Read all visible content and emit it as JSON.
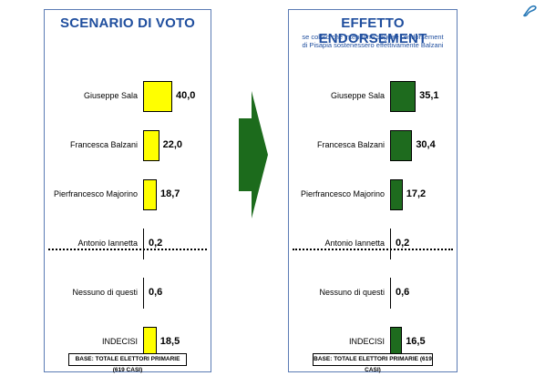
{
  "colors": {
    "left_bar": "#ffff00",
    "right_bar": "#1e6b1e",
    "frame": "#5b7bb4",
    "title": "#1f4e9e",
    "arrow": "#1c6b1c"
  },
  "chart_data": [
    {
      "type": "bar",
      "orientation": "horizontal",
      "title": "SCENARIO DI VOTO",
      "categories": [
        "Giuseppe Sala",
        "Francesca Balzani",
        "Pierfrancesco Majorino",
        "Antonio Iannetta",
        "Nessuno di questi",
        "INDECISI"
      ],
      "values": [
        40.0,
        22.0,
        18.7,
        0.2,
        0.6,
        18.5
      ],
      "value_labels": [
        "40,0",
        "22,0",
        "18,7",
        "0,2",
        "0,6",
        "18,5"
      ],
      "base": "BASE: TOTALE ELETTORI PRIMARIE (619 CASI)"
    },
    {
      "type": "bar",
      "orientation": "horizontal",
      "title": "EFFETTO ENDORSEMENT",
      "subtitle_lines": [
        "se coloro che intendono seguire l'endorsement",
        "di Pisapia sostenessero effettivamente Balzani"
      ],
      "categories": [
        "Giuseppe Sala",
        "Francesca Balzani",
        "Pierfrancesco Majorino",
        "Antonio Iannetta",
        "Nessuno di questi",
        "INDECISI"
      ],
      "values": [
        35.1,
        30.4,
        17.2,
        0.2,
        0.6,
        16.5
      ],
      "value_labels": [
        "35,1",
        "30,4",
        "17,2",
        "0,2",
        "0,6",
        "16,5"
      ],
      "base": "BASE: TOTALE ELETTORI PRIMARIE (619 CASI)"
    }
  ]
}
